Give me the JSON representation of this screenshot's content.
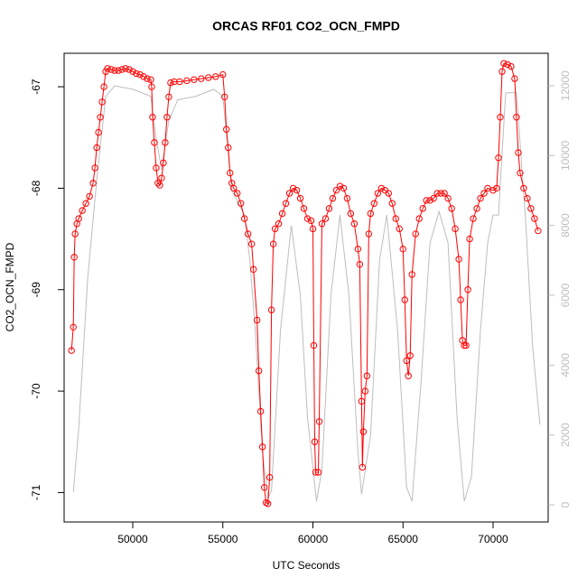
{
  "chart_data": {
    "type": "line",
    "title": "ORCAS RF01 CO2_OCN_FMPD",
    "x_label": "UTC Seconds",
    "y_label": "CO2_OCN_FMPD",
    "xlim": [
      46190,
      73058
    ],
    "xticks": [
      50000,
      55000,
      60000,
      65000,
      70000
    ],
    "ylim": [
      -71.29,
      -66.67
    ],
    "yticks": [
      -71,
      -70,
      -69,
      -68,
      -67
    ],
    "y2lim": [
      -491,
      12931
    ],
    "y2ticks": [
      0,
      2000,
      4000,
      6000,
      8000,
      10000,
      12000
    ],
    "series": [
      {
        "color": "#ff0000",
        "markers": true,
        "axis": "y",
        "x": [
          46600,
          46700,
          46750,
          46800,
          46900,
          47000,
          47200,
          47400,
          47600,
          47800,
          47900,
          48000,
          48100,
          48200,
          48300,
          48400,
          48500,
          48600,
          48800,
          49000,
          49200,
          49400,
          49600,
          49800,
          50000,
          50200,
          50400,
          50600,
          50800,
          51000,
          51050,
          51100,
          51200,
          51300,
          51400,
          51500,
          51600,
          51700,
          51800,
          51900,
          52000,
          52100,
          52300,
          52600,
          53000,
          53400,
          53800,
          54200,
          54600,
          55000,
          55100,
          55200,
          55300,
          55400,
          55500,
          55600,
          55800,
          56000,
          56200,
          56400,
          56600,
          56700,
          56900,
          57000,
          57100,
          57200,
          57300,
          57400,
          57500,
          57600,
          57700,
          57800,
          57900,
          58100,
          58300,
          58500,
          58700,
          58900,
          59100,
          59300,
          59500,
          59700,
          59900,
          60000,
          60050,
          60100,
          60150,
          60300,
          60350,
          60500,
          60700,
          60900,
          61100,
          61300,
          61500,
          61700,
          61900,
          62100,
          62300,
          62500,
          62600,
          62700,
          62750,
          62800,
          62900,
          63000,
          63100,
          63200,
          63400,
          63600,
          63800,
          64000,
          64200,
          64400,
          64600,
          64800,
          65000,
          65100,
          65200,
          65300,
          65400,
          65500,
          65700,
          65900,
          66100,
          66300,
          66500,
          66700,
          66900,
          67100,
          67300,
          67500,
          67700,
          67900,
          68100,
          68200,
          68300,
          68400,
          68500,
          68600,
          68700,
          68900,
          69100,
          69300,
          69500,
          69700,
          70000,
          70200,
          70300,
          70400,
          70500,
          70600,
          70800,
          71000,
          71200,
          71300,
          71400,
          71500,
          71700,
          71900,
          72100,
          72300,
          72500
        ],
        "values": [
          -69.6,
          -69.37,
          -68.68,
          -68.45,
          -68.35,
          -68.3,
          -68.22,
          -68.15,
          -68.08,
          -67.95,
          -67.8,
          -67.6,
          -67.45,
          -67.3,
          -67.15,
          -67.0,
          -66.85,
          -66.82,
          -66.83,
          -66.84,
          -66.84,
          -66.83,
          -66.82,
          -66.83,
          -66.85,
          -66.87,
          -66.88,
          -66.9,
          -66.92,
          -66.93,
          -67.0,
          -67.3,
          -67.55,
          -67.8,
          -67.95,
          -67.97,
          -67.9,
          -67.75,
          -67.55,
          -67.3,
          -67.1,
          -66.96,
          -66.95,
          -66.95,
          -66.94,
          -66.93,
          -66.92,
          -66.91,
          -66.9,
          -66.88,
          -67.1,
          -67.42,
          -67.6,
          -67.85,
          -67.95,
          -68.0,
          -68.05,
          -68.15,
          -68.3,
          -68.45,
          -68.55,
          -68.8,
          -69.3,
          -69.8,
          -70.2,
          -70.55,
          -70.95,
          -71.1,
          -71.11,
          -70.85,
          -69.2,
          -68.55,
          -68.4,
          -68.35,
          -68.25,
          -68.15,
          -68.05,
          -68.0,
          -68.02,
          -68.1,
          -68.2,
          -68.3,
          -68.32,
          -68.4,
          -69.55,
          -70.5,
          -70.8,
          -70.8,
          -70.3,
          -68.35,
          -68.3,
          -68.2,
          -68.1,
          -68.02,
          -67.98,
          -68.0,
          -68.1,
          -68.25,
          -68.35,
          -68.6,
          -68.75,
          -70.1,
          -70.75,
          -70.4,
          -70.0,
          -69.85,
          -68.45,
          -68.25,
          -68.15,
          -68.05,
          -68.0,
          -68.02,
          -68.05,
          -68.15,
          -68.3,
          -68.4,
          -68.6,
          -69.1,
          -69.7,
          -69.85,
          -69.65,
          -68.85,
          -68.45,
          -68.3,
          -68.2,
          -68.12,
          -68.12,
          -68.1,
          -68.05,
          -68.05,
          -68.05,
          -68.1,
          -68.2,
          -68.4,
          -68.7,
          -69.1,
          -69.5,
          -69.55,
          -69.55,
          -69.0,
          -68.5,
          -68.3,
          -68.2,
          -68.1,
          -68.05,
          -68.0,
          -68.02,
          -68.0,
          -67.7,
          -67.3,
          -66.85,
          -66.77,
          -66.78,
          -66.8,
          -66.92,
          -67.3,
          -67.65,
          -67.85,
          -68.0,
          -68.1,
          -68.2,
          -68.3,
          -68.42
        ]
      },
      {
        "color": "#bebebe",
        "markers": false,
        "axis": "y2",
        "x": [
          46700,
          47000,
          47500,
          48000,
          48500,
          49000,
          50000,
          51000,
          51300,
          51600,
          52000,
          52500,
          53500,
          54500,
          55000,
          55500,
          56000,
          56200,
          56500,
          56800,
          57200,
          57500,
          57700,
          58200,
          58800,
          59300,
          59700,
          60200,
          60500,
          61000,
          61500,
          62000,
          62500,
          62700,
          63200,
          63700,
          64100,
          64700,
          65200,
          65500,
          66000,
          66500,
          67000,
          67500,
          68000,
          68400,
          68800,
          69300,
          69700,
          70000,
          70300,
          70700,
          71300,
          71800,
          72200,
          72600
        ],
        "values": [
          360,
          2200,
          6500,
          9300,
          11700,
          12000,
          11900,
          11700,
          10500,
          9600,
          11000,
          11600,
          11700,
          11900,
          11700,
          9000,
          8500,
          8300,
          7000,
          5000,
          1500,
          200,
          400,
          5000,
          8000,
          6000,
          2500,
          100,
          1000,
          6000,
          8300,
          6000,
          1500,
          300,
          2000,
          7000,
          8300,
          5000,
          500,
          100,
          3500,
          7500,
          8400,
          7500,
          2500,
          100,
          800,
          5000,
          7500,
          8300,
          8300,
          11800,
          11800,
          8200,
          4500,
          2300
        ]
      }
    ]
  }
}
